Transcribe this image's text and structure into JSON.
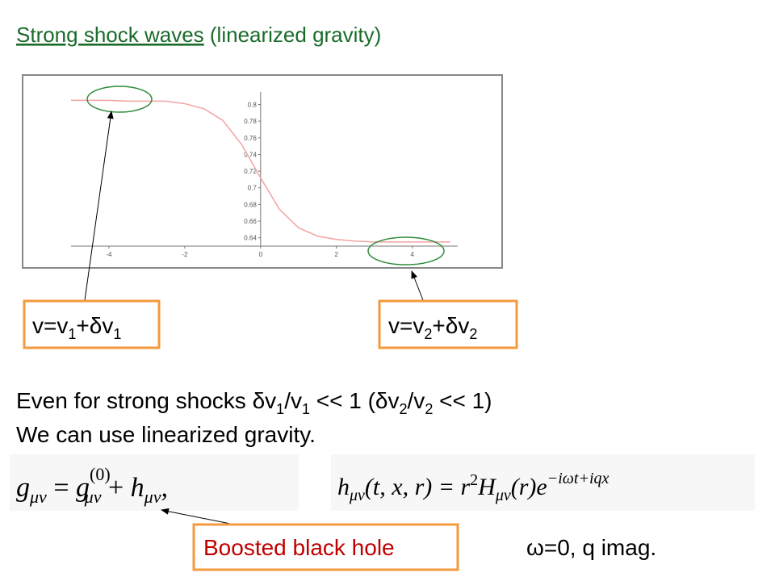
{
  "title": {
    "underlined": "Strong shock waves",
    "rest": " (linearized gravity)"
  },
  "chart_data": {
    "type": "line",
    "x": [
      -5,
      -4.5,
      -4,
      -3.5,
      -3,
      -2.5,
      -2,
      -1.5,
      -1,
      -0.5,
      0,
      0.5,
      1,
      1.5,
      2,
      2.5,
      3,
      3.5,
      4,
      4.5,
      5
    ],
    "series": [
      {
        "color": "#f2a3a3",
        "values": [
          0.805,
          0.805,
          0.805,
          0.804,
          0.804,
          0.804,
          0.801,
          0.795,
          0.781,
          0.752,
          0.712,
          0.674,
          0.652,
          0.642,
          0.638,
          0.636,
          0.635,
          0.635,
          0.635,
          0.635,
          0.635
        ]
      }
    ],
    "xlim": [
      -5,
      5.2
    ],
    "ylim": [
      0.63,
      0.815
    ],
    "xticks": [
      -4,
      -2,
      0,
      2,
      4
    ],
    "yticks": [
      0.64,
      0.66,
      0.68,
      0.7,
      0.72,
      0.74,
      0.76,
      0.78,
      0.8
    ]
  },
  "labels": {
    "left": [
      "v=v",
      "1",
      "+δv",
      "1"
    ],
    "right": [
      "v=v",
      "2",
      "+δv",
      "2"
    ]
  },
  "body": {
    "line1": [
      "Even for strong shocks  δv",
      "1",
      "/v",
      "1",
      " << 1 (δv",
      "2",
      "/v",
      "2",
      " << 1)"
    ],
    "line2": "We can use linearized gravity."
  },
  "equation_1": [
    "g",
    "μν",
    " = ",
    "g",
    "(0)",
    "μν",
    " + ",
    "h",
    "μν",
    ","
  ],
  "equation_2": [
    "h",
    "μν",
    "(t, x, r) = r",
    "2",
    "H",
    "μν",
    "(r)e",
    "−iωt+iqx"
  ],
  "boosted": "Boosted black hole",
  "note": "ω=0, q imag."
}
